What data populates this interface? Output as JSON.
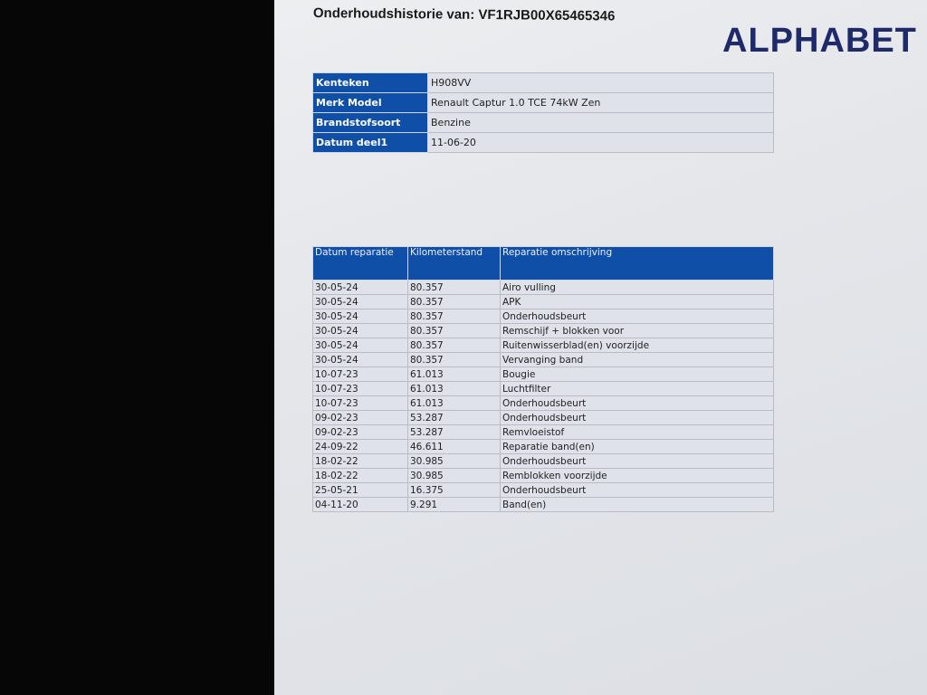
{
  "document": {
    "title": "Onderhoudshistorie van: VF1RJB00X65465346",
    "logo": "ALPHABET",
    "brand_color": "#1f2a6b",
    "header_color": "#0f4fa8"
  },
  "vehicle_info": [
    {
      "label": "Kenteken",
      "value": "H908VV"
    },
    {
      "label": "Merk Model",
      "value": "Renault Captur 1.0 TCE 74kW Zen"
    },
    {
      "label": "Brandstofsoort",
      "value": "Benzine"
    },
    {
      "label": "Datum deel1",
      "value": "11-06-20"
    }
  ],
  "history": {
    "columns": [
      "Datum reparatie",
      "Kilometerstand",
      "Reparatie omschrijving"
    ],
    "rows": [
      [
        "30-05-24",
        "80.357",
        "Airo vulling"
      ],
      [
        "30-05-24",
        "80.357",
        "APK"
      ],
      [
        "30-05-24",
        "80.357",
        "Onderhoudsbeurt"
      ],
      [
        "30-05-24",
        "80.357",
        "Remschijf + blokken voor"
      ],
      [
        "30-05-24",
        "80.357",
        "Ruitenwisserblad(en) voorzijde"
      ],
      [
        "30-05-24",
        "80.357",
        "Vervanging band"
      ],
      [
        "10-07-23",
        "61.013",
        "Bougie"
      ],
      [
        "10-07-23",
        "61.013",
        "Luchtfilter"
      ],
      [
        "10-07-23",
        "61.013",
        "Onderhoudsbeurt"
      ],
      [
        "09-02-23",
        "53.287",
        "Onderhoudsbeurt"
      ],
      [
        "09-02-23",
        "53.287",
        "Remvloeistof"
      ],
      [
        "24-09-22",
        "46.611",
        "Reparatie band(en)"
      ],
      [
        "18-02-22",
        "30.985",
        "Onderhoudsbeurt"
      ],
      [
        "18-02-22",
        "30.985",
        "Remblokken voorzijde"
      ],
      [
        "25-05-21",
        "16.375",
        "Onderhoudsbeurt"
      ],
      [
        "04-11-20",
        "9.291",
        "Band(en)"
      ]
    ]
  }
}
